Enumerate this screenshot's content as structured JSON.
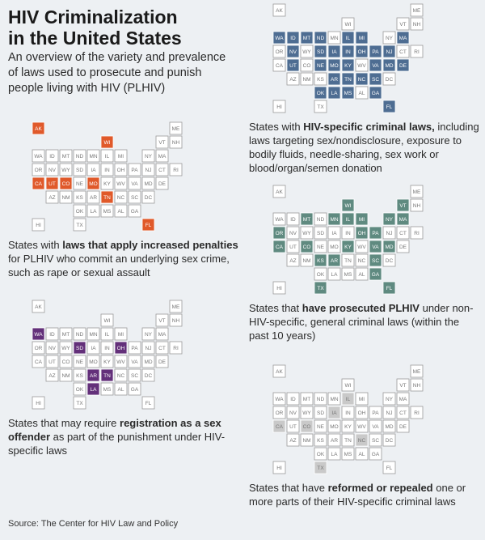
{
  "header": {
    "title_line1": "HIV Criminalization",
    "title_line2": "in the United States",
    "subtitle": "An overview of the variety and prevalence of laws used to prosecute and punish people living with HIV (PLHIV)"
  },
  "maps": [
    {
      "id": "hiv-specific-laws",
      "color": "#4e6d92",
      "caption": {
        "pre": "States with ",
        "bold": "HIV-specific criminal laws,",
        "post": " including laws targeting sex/nondisclosure, exposure to bodily fluids, needle-sharing, sex work or blood/organ/semen donation"
      },
      "states": [
        "WA",
        "ID",
        "MT",
        "ND",
        "SD",
        "NE",
        "NV",
        "UT",
        "OK",
        "IA",
        "MO",
        "AR",
        "LA",
        "MS",
        "IL",
        "IN",
        "MI",
        "OH",
        "KY",
        "TN",
        "PA",
        "NJ",
        "MD",
        "DE",
        "VA",
        "NC",
        "SC",
        "GA",
        "FL",
        "MA"
      ]
    },
    {
      "id": "increased-penalties",
      "color": "#e0592a",
      "caption": {
        "pre": "States with ",
        "bold": "laws that apply increased penalties",
        "post": " for PLHIV who commit an underlying sex crime, such as rape or sexual assault"
      },
      "states": [
        "CA",
        "UT",
        "CO",
        "WI",
        "MO",
        "TN",
        "FL",
        "AK"
      ]
    },
    {
      "id": "general-prosecutions",
      "color": "#5f8a80",
      "caption": {
        "pre": "States that ",
        "bold": "have prosecuted PLHIV",
        "post": " under non-HIV-specific, general criminal laws (within the past 10 years)"
      },
      "states": [
        "OR",
        "CA",
        "MT",
        "CO",
        "KS",
        "TX",
        "MN",
        "WI",
        "IL",
        "MI",
        "AR",
        "KY",
        "OH",
        "PA",
        "NY",
        "VT",
        "MA",
        "MD",
        "VA",
        "GA",
        "SC",
        "FL"
      ]
    },
    {
      "id": "sex-offender-registration",
      "color": "#63307a",
      "caption": {
        "pre": "States that may require ",
        "bold": "registration as a sex offender",
        "post": " as part of the punishment under HIV-specific laws"
      },
      "states": [
        "WA",
        "SD",
        "OH",
        "AR",
        "LA",
        "TN"
      ]
    },
    {
      "id": "reformed-repealed",
      "color": "#c9c9c9",
      "caption": {
        "pre": "States that have ",
        "bold": "reformed or repealed",
        "post": " one or more parts of their HIV-specific criminal laws"
      },
      "states": [
        "CA",
        "CO",
        "IA",
        "IL",
        "TX",
        "NC"
      ]
    }
  ],
  "source": "Source: The Center for HIV Law and Policy"
}
